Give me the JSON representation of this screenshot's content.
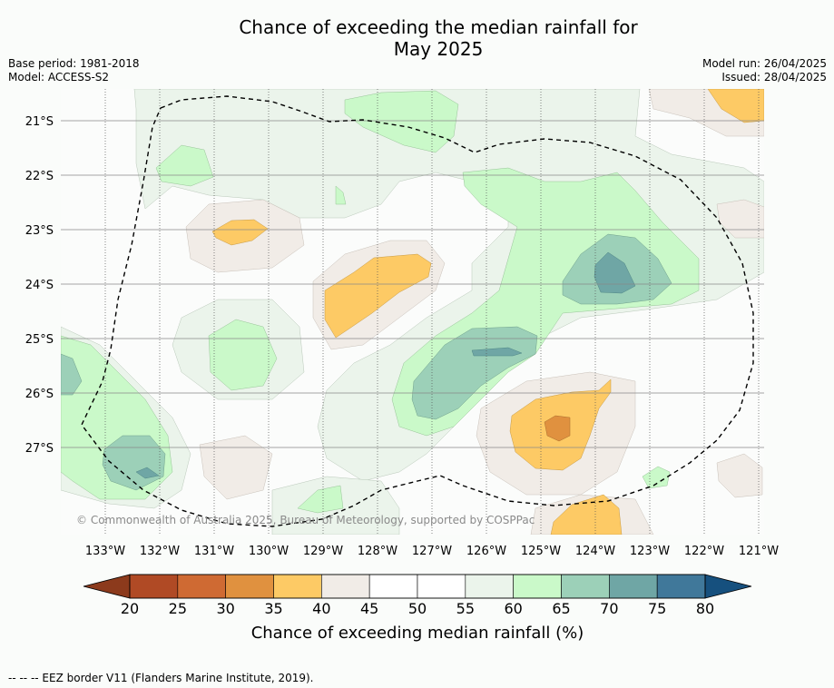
{
  "title_line1": "Chance of exceeding the median rainfall for",
  "title_line2": "May 2025",
  "base_period": "Base period: 1981-2018",
  "model": "Model: ACCESS-S2",
  "model_run": "Model run: 26/04/2025",
  "issued": "Issued: 28/04/2025",
  "copyright": "© Commonwealth of Australia 2025, Bureau of Meteorology, supported by COSPPac",
  "footer_legend": "--  --  -- EEZ border V11 (Flanders Marine Institute, 2019).",
  "lat_labels": [
    "21°S",
    "22°S",
    "23°S",
    "24°S",
    "25°S",
    "26°S",
    "27°S"
  ],
  "lon_labels": [
    "133°W",
    "132°W",
    "131°W",
    "130°W",
    "129°W",
    "128°W",
    "127°W",
    "126°W",
    "125°W",
    "124°W",
    "123°W",
    "122°W",
    "121°W"
  ],
  "colorbar": {
    "label": "Chance of exceeding median rainfall (%)",
    "ticks": [
      "20",
      "25",
      "30",
      "35",
      "40",
      "45",
      "50",
      "55",
      "60",
      "65",
      "70",
      "75",
      "80"
    ],
    "under_color": "#8c3a1c",
    "over_color": "#16507e",
    "colors": [
      "#b04a25",
      "#cf6a33",
      "#e0913f",
      "#fdca65",
      "#f1ece7",
      "#ffffff",
      "#ffffff",
      "#ebf4eb",
      "#caf9c9",
      "#9cd0b8",
      "#6fa6a5",
      "#40789a"
    ]
  },
  "colors": {
    "background": "#fafcfa",
    "ocean_neutral": "#fbfcfb",
    "c40_45": "#f1ece7",
    "c35_40": "#fdca65",
    "c30_35": "#e0913f",
    "c55_60": "#ebf4eb",
    "c60_65": "#caf9c9",
    "c65_70": "#9cd0b8",
    "c70_75": "#6fa6a5",
    "c75_80": "#40789a"
  }
}
